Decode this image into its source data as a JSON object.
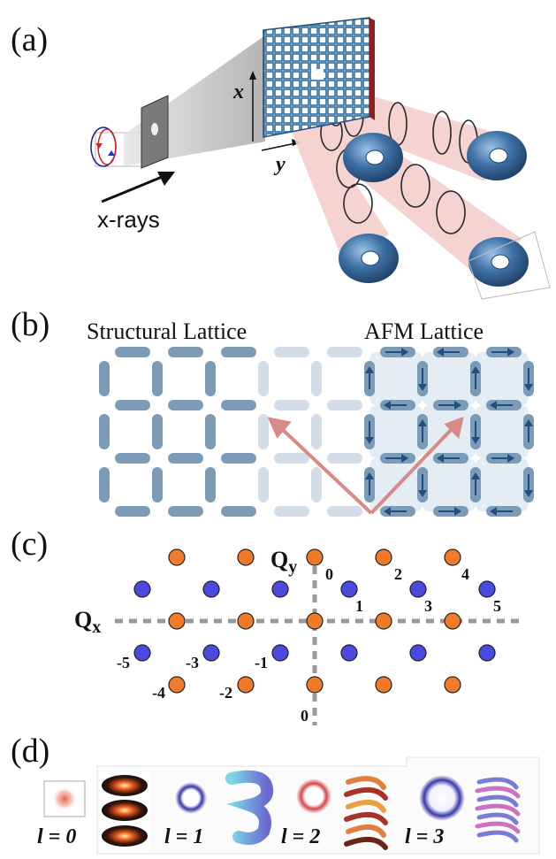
{
  "panels": {
    "a": "(a)",
    "b": "(b)",
    "c": "(c)",
    "d": "(d)"
  },
  "panel_a": {
    "beam_label": "x-rays",
    "axis_x": "x",
    "axis_y": "y"
  },
  "panel_b": {
    "left_title": "Structural Lattice",
    "right_title": "AFM Lattice"
  },
  "panel_c": {
    "axis_qx": "Q",
    "axis_qx_sub": "x",
    "axis_qy": "Q",
    "axis_qy_sub": "y",
    "order_labels": {
      "top": [
        "0",
        "1",
        "2",
        "3",
        "4",
        "5"
      ],
      "bottom": [
        "0",
        "-1",
        "-2",
        "-3",
        "-4",
        "-5"
      ]
    },
    "colors": {
      "orange": "#f07a28",
      "blue": "#4a4ae0"
    }
  },
  "panel_d": {
    "labels": [
      "l = 0",
      "l = 1",
      "l = 2",
      "l = 3"
    ]
  },
  "colors": {
    "lattice": "#7c9bb7",
    "lattice_light": "#d3dde7",
    "arrow_red": "#d98a86",
    "torus": "#2f5f8f",
    "beam": "#f4cfcb"
  }
}
